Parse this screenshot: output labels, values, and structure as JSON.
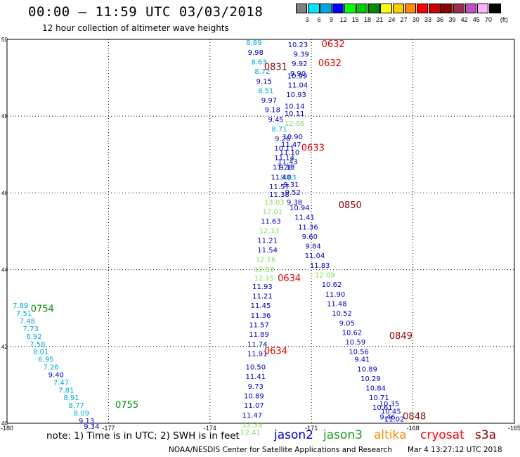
{
  "title": "00:00 – 11:59 UTC 03/03/2018",
  "subtitle": "12 hour collection of altimeter wave heights",
  "legend": {
    "unit": "(ft)",
    "bins": [
      {
        "label": "3",
        "color": "#808080"
      },
      {
        "label": "6",
        "color": "#00e5ff"
      },
      {
        "label": "9",
        "color": "#00a8e0"
      },
      {
        "label": "12",
        "color": "#0000ff"
      },
      {
        "label": "15",
        "color": "#00ff00"
      },
      {
        "label": "18",
        "color": "#00c800"
      },
      {
        "label": "21",
        "color": "#008c00"
      },
      {
        "label": "24",
        "color": "#ffff00"
      },
      {
        "label": "27",
        "color": "#ffcc00"
      },
      {
        "label": "30",
        "color": "#ff8c00"
      },
      {
        "label": "33",
        "color": "#ff0000"
      },
      {
        "label": "36",
        "color": "#c80000"
      },
      {
        "label": "39",
        "color": "#8c0000"
      },
      {
        "label": "42",
        "color": "#9a2f4f"
      },
      {
        "label": "45",
        "color": "#c04fc0"
      },
      {
        "label": "70",
        "color": "#ffb0ff"
      },
      {
        "label": "",
        "color": "#000000"
      }
    ]
  },
  "axes": {
    "lon_ticks": [
      -180,
      -177,
      -174,
      -171,
      -168,
      -165
    ],
    "lat_ticks": [
      40,
      42,
      44,
      46,
      48,
      50
    ],
    "lon_range": [
      -180,
      -165
    ],
    "lat_range": [
      40,
      50
    ],
    "grid": true
  },
  "colors": {
    "jason2": "#0000c8",
    "jason3": "#1e9e1e",
    "jason3_light": "#7ee05a",
    "altika": "#ff8c00",
    "cryosat": "#ff0000",
    "s3a": "#8c0000",
    "cyan": "#00a8e0"
  },
  "time_labels": [
    {
      "text": "0632",
      "lon": -170.7,
      "lat": 49.8,
      "color": "#e00000"
    },
    {
      "text": "0632",
      "lon": -170.8,
      "lat": 49.3,
      "color": "#e00000"
    },
    {
      "text": "0831",
      "lon": -172.4,
      "lat": 49.2,
      "color": "#8c0000"
    },
    {
      "text": "0633",
      "lon": -171.3,
      "lat": 47.1,
      "color": "#e00000"
    },
    {
      "text": "0850",
      "lon": -170.2,
      "lat": 45.6,
      "color": "#8c0000"
    },
    {
      "text": "0634",
      "lon": -172.0,
      "lat": 43.7,
      "color": "#e00000"
    },
    {
      "text": "0634",
      "lon": -172.4,
      "lat": 41.8,
      "color": "#e00000"
    },
    {
      "text": "0849",
      "lon": -168.7,
      "lat": 42.2,
      "color": "#8c0000"
    },
    {
      "text": "0848",
      "lon": -168.3,
      "lat": 40.1,
      "color": "#8c0000"
    },
    {
      "text": "0754",
      "lon": -179.3,
      "lat": 42.9,
      "color": "#008c00"
    },
    {
      "text": "0755",
      "lon": -176.8,
      "lat": 40.4,
      "color": "#008c00"
    }
  ],
  "chart_data": {
    "type": "scatter",
    "title": "00:00 – 11:59 UTC 03/03/2018",
    "subtitle": "12 hour collection of altimeter wave heights",
    "xlabel": "",
    "ylabel": "",
    "xlim": [
      -180,
      -165
    ],
    "ylim": [
      40,
      50
    ],
    "series": [
      {
        "points": [
          {
            "lon": -171.4,
            "lat": 49.8,
            "v": "10.23",
            "c": "#0000c8"
          },
          {
            "lon": -171.3,
            "lat": 49.55,
            "v": "9.39",
            "c": "#0000c8"
          },
          {
            "lon": -171.35,
            "lat": 49.3,
            "v": "9.92",
            "c": "#0000c8"
          },
          {
            "lon": -171.4,
            "lat": 49.05,
            "v": "9.90",
            "c": "#0000c8"
          },
          {
            "lon": -171.42,
            "lat": 48.98,
            "v": "10.99",
            "c": "#0000c8"
          },
          {
            "lon": -171.4,
            "lat": 48.75,
            "v": "11.04",
            "c": "#0000c8"
          },
          {
            "lon": -171.45,
            "lat": 48.5,
            "v": "10.93",
            "c": "#0000c8"
          },
          {
            "lon": -171.5,
            "lat": 48.2,
            "v": "10.14",
            "c": "#0000c8"
          },
          {
            "lon": -171.5,
            "lat": 48.0,
            "v": "10.11",
            "c": "#0000c8"
          },
          {
            "lon": -171.5,
            "lat": 47.75,
            "v": "12.06",
            "c": "#7ee05a"
          },
          {
            "lon": -171.55,
            "lat": 47.4,
            "v": "10.90",
            "c": "#0000c8"
          },
          {
            "lon": -171.6,
            "lat": 47.2,
            "v": "11.47",
            "c": "#0000c8"
          },
          {
            "lon": -171.65,
            "lat": 47.0,
            "v": "11.10",
            "c": "#0000c8"
          },
          {
            "lon": -171.7,
            "lat": 46.75,
            "v": "11.43",
            "c": "#0000c8"
          },
          {
            "lon": -171.72,
            "lat": 46.6,
            "v": "9.13",
            "c": "#0000c8"
          },
          {
            "lon": -171.68,
            "lat": 46.35,
            "v": "9.83",
            "c": "#00a8e0"
          },
          {
            "lon": -171.6,
            "lat": 46.15,
            "v": "9.31",
            "c": "#0000c8"
          },
          {
            "lon": -171.55,
            "lat": 45.95,
            "v": "9.52",
            "c": "#0000c8"
          },
          {
            "lon": -171.5,
            "lat": 45.7,
            "v": "9.38",
            "c": "#0000c8"
          },
          {
            "lon": -171.35,
            "lat": 45.55,
            "v": "10.94",
            "c": "#0000c8"
          },
          {
            "lon": -171.2,
            "lat": 45.3,
            "v": "11.41",
            "c": "#0000c8"
          },
          {
            "lon": -171.1,
            "lat": 45.05,
            "v": "11.36",
            "c": "#0000c8"
          },
          {
            "lon": -171.05,
            "lat": 44.8,
            "v": "9.60",
            "c": "#0000c8"
          },
          {
            "lon": -170.95,
            "lat": 44.55,
            "v": "9.84",
            "c": "#0000c8"
          },
          {
            "lon": -170.9,
            "lat": 44.3,
            "v": "11.04",
            "c": "#0000c8"
          },
          {
            "lon": -170.75,
            "lat": 44.05,
            "v": "11.83",
            "c": "#0000c8"
          },
          {
            "lon": -170.6,
            "lat": 43.8,
            "v": "12.09",
            "c": "#7ee05a"
          },
          {
            "lon": -170.4,
            "lat": 43.55,
            "v": "10.62",
            "c": "#0000c8"
          },
          {
            "lon": -170.3,
            "lat": 43.3,
            "v": "11.90",
            "c": "#0000c8"
          },
          {
            "lon": -170.25,
            "lat": 43.05,
            "v": "11.48",
            "c": "#0000c8"
          },
          {
            "lon": -170.1,
            "lat": 42.8,
            "v": "10.52",
            "c": "#0000c8"
          },
          {
            "lon": -169.95,
            "lat": 42.55,
            "v": "9.05",
            "c": "#0000c8"
          },
          {
            "lon": -169.8,
            "lat": 42.3,
            "v": "10.62",
            "c": "#0000c8"
          },
          {
            "lon": -169.7,
            "lat": 42.05,
            "v": "10.59",
            "c": "#0000c8"
          },
          {
            "lon": -169.6,
            "lat": 41.8,
            "v": "10.56",
            "c": "#0000c8"
          },
          {
            "lon": -169.5,
            "lat": 41.6,
            "v": "9.41",
            "c": "#0000c8"
          },
          {
            "lon": -169.35,
            "lat": 41.35,
            "v": "10.89",
            "c": "#0000c8"
          },
          {
            "lon": -169.25,
            "lat": 41.1,
            "v": "10.29",
            "c": "#0000c8"
          },
          {
            "lon": -169.1,
            "lat": 40.85,
            "v": "10.84",
            "c": "#0000c8"
          },
          {
            "lon": -169.0,
            "lat": 40.6,
            "v": "10.71",
            "c": "#0000c8"
          },
          {
            "lon": -168.9,
            "lat": 40.35,
            "v": "10.61",
            "c": "#0000c8"
          },
          {
            "lon": -168.75,
            "lat": 40.1,
            "v": "9.46",
            "c": "#0000c8"
          },
          {
            "lon": -168.7,
            "lat": 40.45,
            "v": "10.35",
            "c": "#0000c8"
          },
          {
            "lon": -168.65,
            "lat": 40.25,
            "v": "10.45",
            "c": "#0000c8"
          },
          {
            "lon": -168.55,
            "lat": 40.05,
            "v": "11.02",
            "c": "#0000c8"
          },
          {
            "lon": -172.7,
            "lat": 49.85,
            "v": "8.89",
            "c": "#00a8e0"
          },
          {
            "lon": -172.65,
            "lat": 49.6,
            "v": "9.98",
            "c": "#0000c8"
          },
          {
            "lon": -172.55,
            "lat": 49.35,
            "v": "8.63",
            "c": "#00a8e0"
          },
          {
            "lon": -172.45,
            "lat": 49.1,
            "v": "8.72",
            "c": "#00a8e0"
          },
          {
            "lon": -172.4,
            "lat": 48.85,
            "v": "9.15",
            "c": "#0000c8"
          },
          {
            "lon": -172.35,
            "lat": 48.6,
            "v": "8.51",
            "c": "#00a8e0"
          },
          {
            "lon": -172.25,
            "lat": 48.35,
            "v": "9.97",
            "c": "#0000c8"
          },
          {
            "lon": -172.15,
            "lat": 48.1,
            "v": "9.18",
            "c": "#0000c8"
          },
          {
            "lon": -172.05,
            "lat": 47.85,
            "v": "9.45",
            "c": "#0000c8"
          },
          {
            "lon": -171.95,
            "lat": 47.6,
            "v": "8.71",
            "c": "#00a8e0"
          },
          {
            "lon": -171.85,
            "lat": 47.35,
            "v": "9.26",
            "c": "#0000c8"
          },
          {
            "lon": -171.8,
            "lat": 47.1,
            "v": "10.11",
            "c": "#0000c8"
          },
          {
            "lon": -171.8,
            "lat": 46.85,
            "v": "11.14",
            "c": "#0000c8"
          },
          {
            "lon": -171.85,
            "lat": 46.6,
            "v": "11.28",
            "c": "#0000c8"
          },
          {
            "lon": -171.9,
            "lat": 46.35,
            "v": "11.40",
            "c": "#0000c8"
          },
          {
            "lon": -171.95,
            "lat": 46.1,
            "v": "11.57",
            "c": "#0000c8"
          },
          {
            "lon": -171.95,
            "lat": 45.9,
            "v": "11.38",
            "c": "#0000c8"
          },
          {
            "lon": -172.1,
            "lat": 45.7,
            "v": "13.03",
            "c": "#7ee05a"
          },
          {
            "lon": -172.15,
            "lat": 45.45,
            "v": "12.01",
            "c": "#7ee05a"
          },
          {
            "lon": -172.2,
            "lat": 45.2,
            "v": "11.63",
            "c": "#0000c8"
          },
          {
            "lon": -172.25,
            "lat": 44.95,
            "v": "12.33",
            "c": "#7ee05a"
          },
          {
            "lon": -172.3,
            "lat": 44.7,
            "v": "11.21",
            "c": "#0000c8"
          },
          {
            "lon": -172.3,
            "lat": 44.45,
            "v": "11.54",
            "c": "#0000c8"
          },
          {
            "lon": -172.35,
            "lat": 44.2,
            "v": "12.16",
            "c": "#7ee05a"
          },
          {
            "lon": -172.4,
            "lat": 43.95,
            "v": "12.83",
            "c": "#7ee05a"
          },
          {
            "lon": -172.4,
            "lat": 43.72,
            "v": "12.15",
            "c": "#7ee05a"
          },
          {
            "lon": -172.45,
            "lat": 43.5,
            "v": "11.93",
            "c": "#0000c8"
          },
          {
            "lon": -172.45,
            "lat": 43.25,
            "v": "11.21",
            "c": "#0000c8"
          },
          {
            "lon": -172.5,
            "lat": 43.0,
            "v": "11.45",
            "c": "#0000c8"
          },
          {
            "lon": -172.5,
            "lat": 42.75,
            "v": "11.36",
            "c": "#0000c8"
          },
          {
            "lon": -172.55,
            "lat": 42.5,
            "v": "11.57",
            "c": "#0000c8"
          },
          {
            "lon": -172.55,
            "lat": 42.25,
            "v": "11.89",
            "c": "#0000c8"
          },
          {
            "lon": -172.6,
            "lat": 42.0,
            "v": "11.74",
            "c": "#0000c8"
          },
          {
            "lon": -172.6,
            "lat": 41.75,
            "v": "11.91",
            "c": "#0000c8"
          },
          {
            "lon": -172.65,
            "lat": 41.4,
            "v": "10.50",
            "c": "#0000c8"
          },
          {
            "lon": -172.65,
            "lat": 41.15,
            "v": "11.41",
            "c": "#0000c8"
          },
          {
            "lon": -172.65,
            "lat": 40.9,
            "v": "9.73",
            "c": "#0000c8"
          },
          {
            "lon": -172.7,
            "lat": 40.65,
            "v": "10.89",
            "c": "#0000c8"
          },
          {
            "lon": -172.7,
            "lat": 40.4,
            "v": "11.07",
            "c": "#0000c8"
          },
          {
            "lon": -172.75,
            "lat": 40.15,
            "v": "11.47",
            "c": "#0000c8"
          },
          {
            "lon": -172.75,
            "lat": 39.9,
            "v": "12.39",
            "c": "#7ee05a"
          },
          {
            "lon": -172.8,
            "lat": 39.7,
            "v": "12.41",
            "c": "#7ee05a"
          },
          {
            "lon": -179.6,
            "lat": 43.0,
            "v": "7.89",
            "c": "#00a8e0"
          },
          {
            "lon": -179.5,
            "lat": 42.8,
            "v": "7.51",
            "c": "#00a8e0"
          },
          {
            "lon": -179.4,
            "lat": 42.6,
            "v": "7.48",
            "c": "#00a8e0"
          },
          {
            "lon": -179.3,
            "lat": 42.4,
            "v": "7.73",
            "c": "#00a8e0"
          },
          {
            "lon": -179.2,
            "lat": 42.2,
            "v": "6.92",
            "c": "#00a8e0"
          },
          {
            "lon": -179.1,
            "lat": 42.0,
            "v": "7.58",
            "c": "#00a8e0"
          },
          {
            "lon": -179.0,
            "lat": 41.8,
            "v": "8.01",
            "c": "#00a8e0"
          },
          {
            "lon": -178.85,
            "lat": 41.6,
            "v": "6.95",
            "c": "#00a8e0"
          },
          {
            "lon": -178.7,
            "lat": 41.4,
            "v": "7.26",
            "c": "#00a8e0"
          },
          {
            "lon": -178.55,
            "lat": 41.2,
            "v": "9.40",
            "c": "#0000c8"
          },
          {
            "lon": -178.4,
            "lat": 41.0,
            "v": "7.47",
            "c": "#00a8e0"
          },
          {
            "lon": -178.25,
            "lat": 40.8,
            "v": "7.81",
            "c": "#00a8e0"
          },
          {
            "lon": -178.1,
            "lat": 40.6,
            "v": "8.91",
            "c": "#00a8e0"
          },
          {
            "lon": -177.95,
            "lat": 40.4,
            "v": "8.77",
            "c": "#00a8e0"
          },
          {
            "lon": -177.8,
            "lat": 40.2,
            "v": "8.09",
            "c": "#00a8e0"
          },
          {
            "lon": -177.65,
            "lat": 40.0,
            "v": "9.13",
            "c": "#0000c8"
          },
          {
            "lon": -177.5,
            "lat": 39.85,
            "v": "9.34",
            "c": "#0000c8"
          }
        ]
      }
    ]
  },
  "footer": {
    "note": "note: 1) Time is in UTC; 2) SWH is in feet",
    "sat_jason2": "jason2",
    "sat_jason3": "jason3",
    "sat_altika": "altika",
    "sat_cryosat": "cryosat",
    "sat_s3a": "s3a",
    "credit": "NOAA/NESDIS Center for Satellite Applications and Research",
    "timestamp": "Mar  4 13:27:12 UTC 2018"
  }
}
